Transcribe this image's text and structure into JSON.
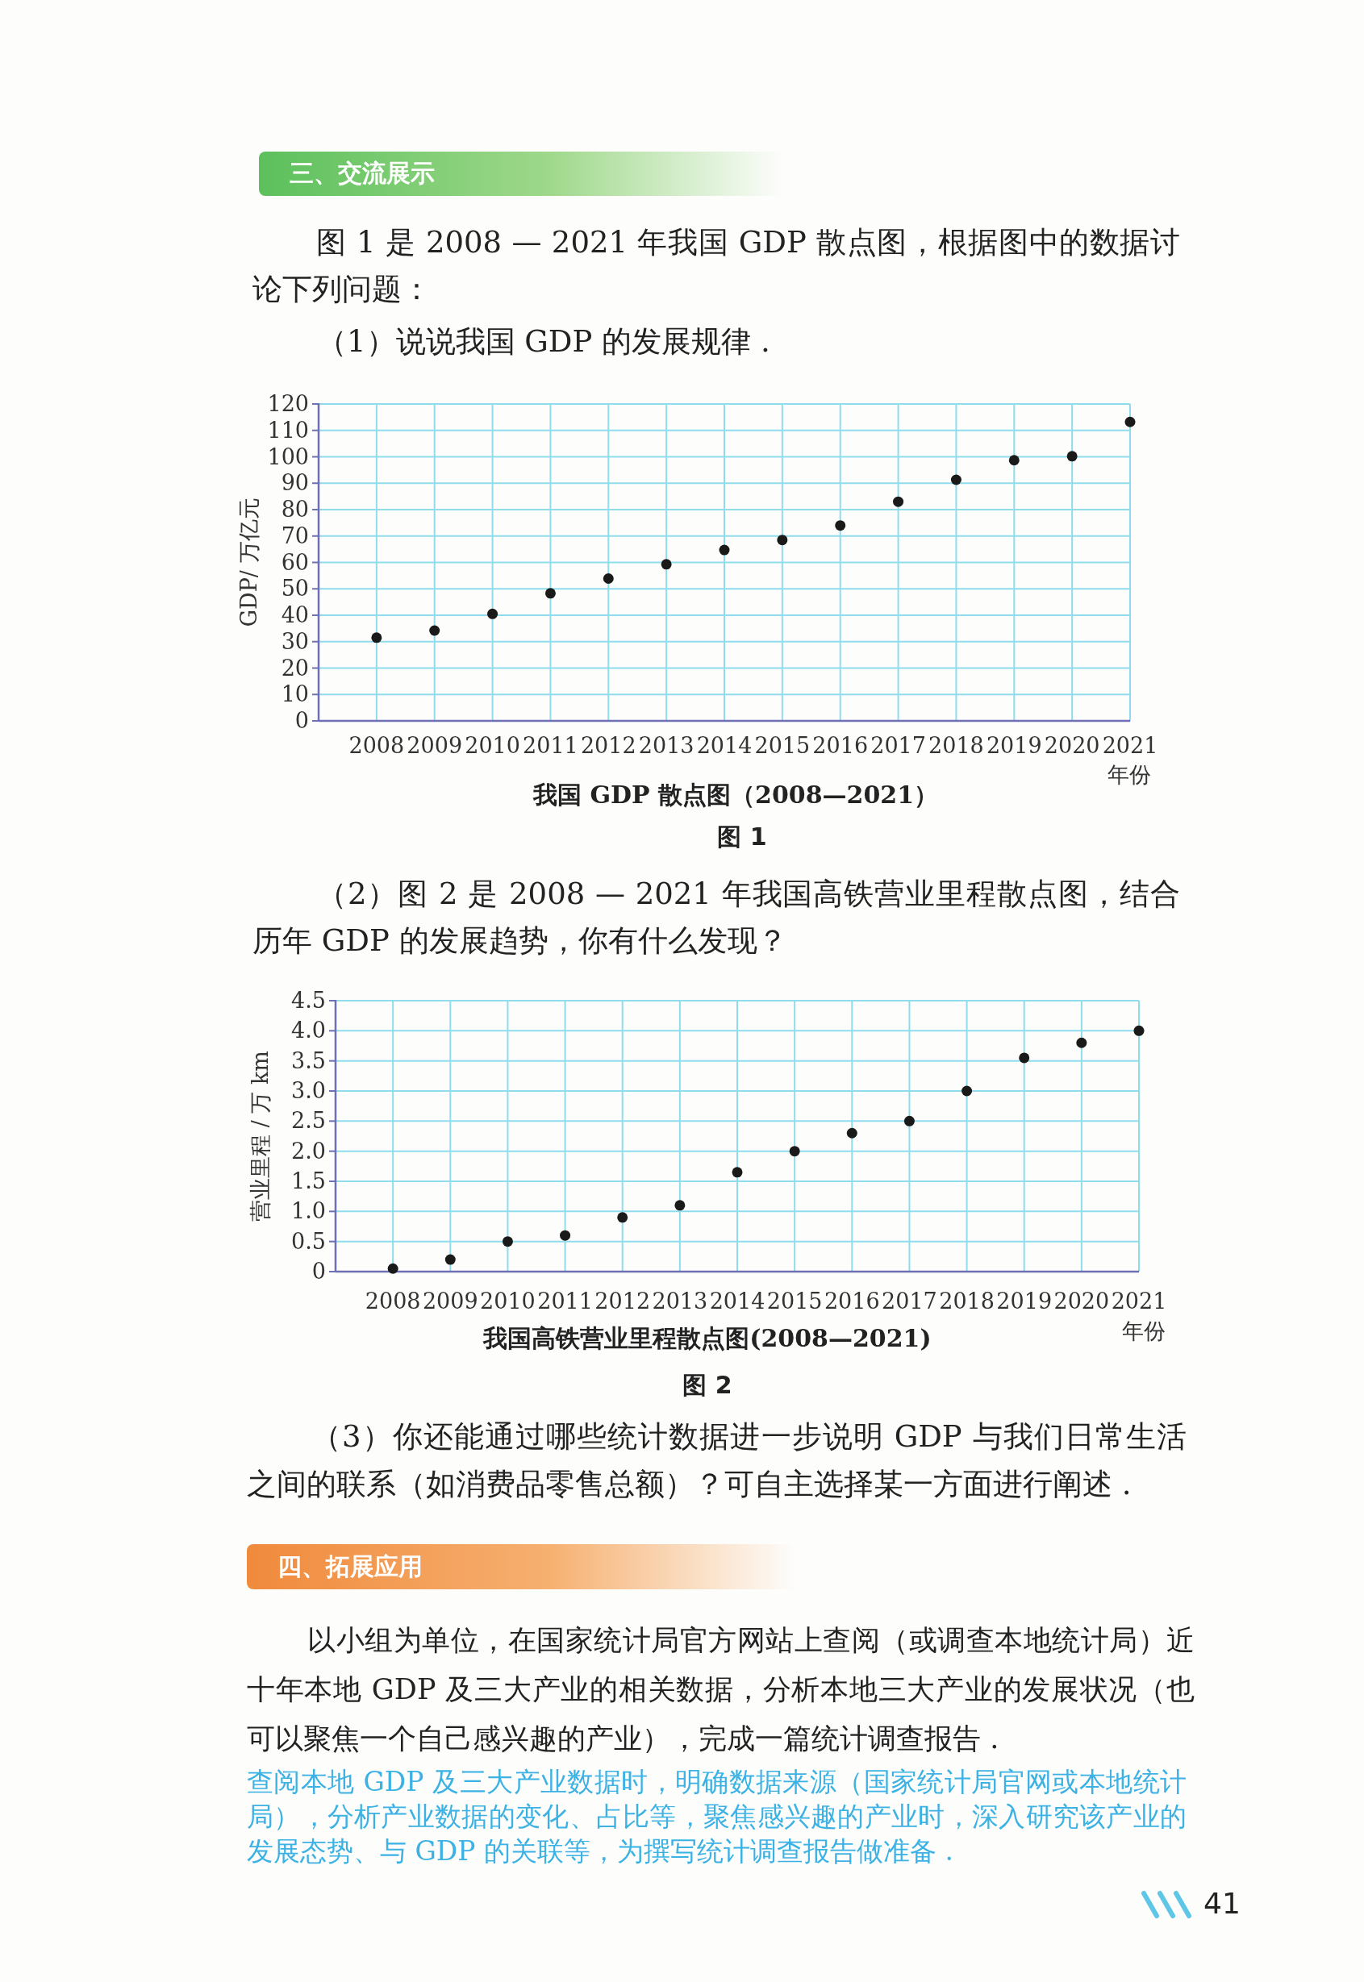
{
  "chart_data": [
    {
      "type": "scatter",
      "title": "我国 GDP 散点图（2008—2021）",
      "xlabel": "年份",
      "ylabel": "GDP/ 万亿元",
      "categories": [
        "2008",
        "2009",
        "2010",
        "2011",
        "2012",
        "2013",
        "2014",
        "2015",
        "2016",
        "2017",
        "2018",
        "2019",
        "2020",
        "2021"
      ],
      "values": [
        31.5,
        34.2,
        40.5,
        48.3,
        53.9,
        59.3,
        64.7,
        68.5,
        74,
        83,
        91.3,
        98.7,
        100.2,
        113.2
      ],
      "color": "#1a1a1a",
      "marker": "circle",
      "grid": true,
      "ylim": [
        0,
        120
      ],
      "yticks": [
        0,
        10,
        20,
        30,
        40,
        50,
        60,
        70,
        80,
        90,
        100,
        110,
        120
      ],
      "annotations": [
        "三、交流展示",
        "图 1 是 2008 — 2021 年我国 GDP 散点图，根据图中的数据讨论下列问题：",
        "（1）说说我国 GDP 的发展规律 .",
        "图 1"
      ]
    },
    {
      "type": "scatter",
      "title": "我国高铁营业里程散点图(2008—2021)",
      "xlabel": "年份",
      "ylabel": "营业里程 / 万 km",
      "categories": [
        "2008",
        "2009",
        "2010",
        "2011",
        "2012",
        "2013",
        "2014",
        "2015",
        "2016",
        "2017",
        "2018",
        "2019",
        "2020",
        "2021"
      ],
      "values": [
        0.05,
        0.2,
        0.5,
        0.6,
        0.9,
        1.1,
        1.65,
        2.0,
        2.3,
        2.5,
        3.0,
        3.55,
        3.8,
        4.0
      ],
      "color": "#1a1a1a",
      "marker": "circle",
      "grid": true,
      "ylim": [
        0,
        4.5
      ],
      "yticks": [
        0,
        0.5,
        {
          "value": 1,
          "label": "1.0"
        },
        1.5,
        {
          "value": 2,
          "label": "2.0"
        },
        2.5,
        {
          "value": 3,
          "label": "3.0"
        },
        3.5,
        {
          "value": 4,
          "label": "4.0"
        },
        4.5
      ],
      "annotations": [
        "（2）图 2 是 2008 — 2021 年我国高铁营业里程散点图，结合历年 GDP 的发展趋势，你有什么发现？",
        "图 2",
        "（3）你还能通过哪些统计数据进一步说明 GDP 与我们日常生活之间的联系（如消费品零售总额）？可自主选择某一方面进行阐述 .",
        "四、拓展应用",
        "以小组为单位，在国家统计局官方网站上查阅（或调查本地统计局）近十年本地 GDP 及三大产业的相关数据，分析本地三大产业的发展状况（也可以聚焦一个自己感兴趣的产业），完成一篇统计调查报告 .",
        "查阅本地 GDP 及三大产业数据时，明确数据来源（国家统计局官网或本地统计局），分析产业数据的变化、占比等，聚焦感兴趣的产业时，深入研究该产业的发展态势、与 GDP 的关联等，为撰写统计调查报告做准备 .",
        "41"
      ]
    }
  ]
}
